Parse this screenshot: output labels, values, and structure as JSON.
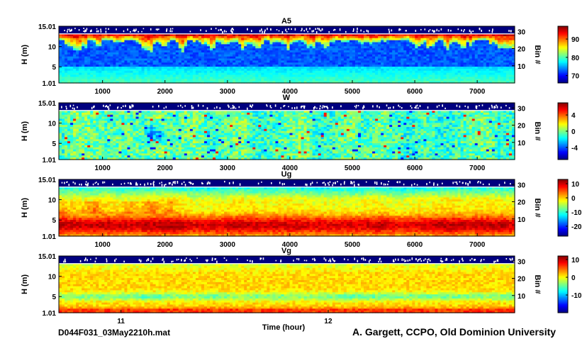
{
  "figure": {
    "file_label": "D044F031_03May2210h.mat",
    "credit": "A. Gargett, CCPO, Old Dominion University"
  },
  "chart_data": [
    {
      "type": "heatmap",
      "title": "A5",
      "ylabel": "H (m)",
      "y_ticks": [
        "1.01",
        "5",
        "10",
        "15.01"
      ],
      "y_tick_values": [
        1.01,
        5,
        10,
        15.01
      ],
      "ylim": [
        1.01,
        15.01
      ],
      "x_ticks": [
        "1000",
        "2000",
        "3000",
        "4000",
        "5000",
        "6000",
        "7000"
      ],
      "x_tick_values": [
        1000,
        2000,
        3000,
        4000,
        5000,
        6000,
        7000
      ],
      "xlim": [
        300,
        7600
      ],
      "right_label": "Bin #",
      "right_ticks": [
        "10",
        "20",
        "30"
      ],
      "right_tick_values": [
        10,
        20,
        30
      ],
      "colorbar": {
        "ticks": [
          "70",
          "80",
          "90"
        ],
        "tick_values": [
          70,
          80,
          90
        ],
        "range": [
          66,
          97
        ]
      }
    },
    {
      "type": "heatmap",
      "title": "W",
      "ylabel": "H (m)",
      "y_ticks": [
        "1.01",
        "5",
        "10",
        "15.01"
      ],
      "y_tick_values": [
        1.01,
        5,
        10,
        15.01
      ],
      "ylim": [
        1.01,
        15.01
      ],
      "x_ticks": [
        "1000",
        "2000",
        "3000",
        "4000",
        "5000",
        "6000",
        "7000"
      ],
      "x_tick_values": [
        1000,
        2000,
        3000,
        4000,
        5000,
        6000,
        7000
      ],
      "xlim": [
        300,
        7600
      ],
      "right_label": "Bin #",
      "right_ticks": [
        "10",
        "20",
        "30"
      ],
      "right_tick_values": [
        10,
        20,
        30
      ],
      "colorbar": {
        "ticks": [
          "-4",
          "0",
          "4"
        ],
        "tick_values": [
          -4,
          0,
          4
        ],
        "range": [
          -7,
          7
        ]
      }
    },
    {
      "type": "heatmap",
      "title": "Ug",
      "ylabel": "H (m)",
      "y_ticks": [
        "1.01",
        "5",
        "10",
        "15.01"
      ],
      "y_tick_values": [
        1.01,
        5,
        10,
        15.01
      ],
      "ylim": [
        1.01,
        15.01
      ],
      "x_ticks": [
        "1000",
        "2000",
        "3000",
        "4000",
        "5000",
        "6000",
        "7000"
      ],
      "x_tick_values": [
        1000,
        2000,
        3000,
        4000,
        5000,
        6000,
        7000
      ],
      "xlim": [
        300,
        7600
      ],
      "right_label": "Bin #",
      "right_ticks": [
        "10",
        "20",
        "30"
      ],
      "right_tick_values": [
        10,
        20,
        30
      ],
      "colorbar": {
        "ticks": [
          "-20",
          "-10",
          "0",
          "10"
        ],
        "tick_values": [
          -20,
          -10,
          0,
          10
        ],
        "range": [
          -27,
          13
        ]
      }
    },
    {
      "type": "heatmap",
      "title": "Vg",
      "ylabel": "H (m)",
      "xlabel": "Time (hour)",
      "y_ticks": [
        "1.01",
        "5",
        "10",
        "15.01"
      ],
      "y_tick_values": [
        1.01,
        5,
        10,
        15.01
      ],
      "ylim": [
        1.01,
        15.01
      ],
      "x_ticks": [
        "11",
        "12"
      ],
      "x_tick_values": [
        11,
        12
      ],
      "xlim": [
        10.7,
        12.9
      ],
      "right_label": "Bin #",
      "right_ticks": [
        "10",
        "20",
        "30"
      ],
      "right_tick_values": [
        10,
        20,
        30
      ],
      "colorbar": {
        "ticks": [
          "-10",
          "0",
          "10"
        ],
        "tick_values": [
          -10,
          0,
          10
        ],
        "range": [
          -20,
          12
        ]
      }
    }
  ]
}
